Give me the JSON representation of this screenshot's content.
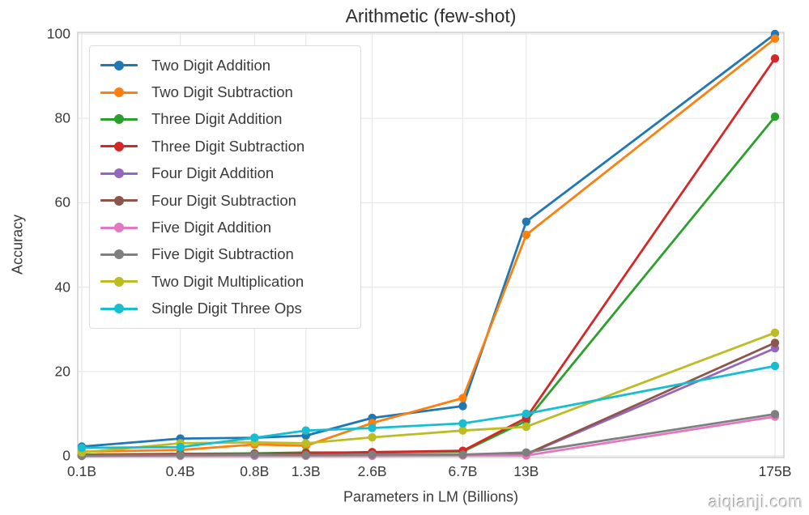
{
  "title": "Arithmetic (few-shot)",
  "watermark": "aiqianji.com",
  "chart_data": {
    "type": "line",
    "title": "Arithmetic (few-shot)",
    "xlabel": "Parameters in LM (Billions)",
    "ylabel": "Accuracy",
    "x_scale": "log",
    "grid": true,
    "legend_position": "upper-left",
    "ylim": [
      0,
      100
    ],
    "yticks": [
      0,
      20,
      40,
      60,
      80,
      100
    ],
    "categories": [
      "0.1B",
      "0.4B",
      "0.8B",
      "1.3B",
      "2.6B",
      "6.7B",
      "13B",
      "175B"
    ],
    "x_values_billions": [
      0.125,
      0.35,
      0.76,
      1.3,
      2.6,
      6.7,
      13,
      175
    ],
    "series": [
      {
        "name": "Two Digit Addition",
        "color": "#1f77b4",
        "values": [
          2.2,
          4.1,
          4.3,
          4.8,
          9.0,
          11.8,
          55.5,
          100.0
        ]
      },
      {
        "name": "Two Digit Subtraction",
        "color": "#ff7f0e",
        "values": [
          1.0,
          1.4,
          2.7,
          2.4,
          7.8,
          13.7,
          52.4,
          98.9
        ]
      },
      {
        "name": "Three Digit Addition",
        "color": "#2ca02c",
        "values": [
          0.3,
          0.5,
          0.6,
          0.8,
          0.8,
          1.0,
          8.3,
          80.4
        ]
      },
      {
        "name": "Three Digit Subtraction",
        "color": "#d62728",
        "values": [
          0.2,
          0.3,
          0.5,
          0.6,
          0.9,
          1.2,
          9.0,
          94.2
        ]
      },
      {
        "name": "Four Digit Addition",
        "color": "#9467bd",
        "values": [
          0.1,
          0.1,
          0.1,
          0.1,
          0.1,
          0.2,
          0.3,
          25.5
        ]
      },
      {
        "name": "Four Digit Subtraction",
        "color": "#8c564b",
        "values": [
          0.1,
          0.1,
          0.1,
          0.1,
          0.1,
          0.2,
          0.4,
          26.8
        ]
      },
      {
        "name": "Five Digit Addition",
        "color": "#e377c2",
        "values": [
          0.0,
          0.0,
          0.0,
          0.0,
          0.0,
          0.1,
          0.1,
          9.3
        ]
      },
      {
        "name": "Five Digit Subtraction",
        "color": "#7f7f7f",
        "values": [
          0.0,
          0.2,
          0.3,
          0.2,
          0.3,
          0.3,
          0.8,
          9.9
        ]
      },
      {
        "name": "Two Digit Multiplication",
        "color": "#bcbd22",
        "values": [
          0.8,
          3.0,
          3.2,
          3.0,
          4.4,
          6.0,
          6.9,
          29.2
        ]
      },
      {
        "name": "Single Digit Three Ops",
        "color": "#17becf",
        "values": [
          1.9,
          2.1,
          4.3,
          6.0,
          6.6,
          7.7,
          10.0,
          21.3
        ]
      }
    ],
    "style": {
      "grid_color": "#e7e7e7",
      "spine_color": "#cccccc",
      "text_color": "#3a3a3a"
    }
  }
}
